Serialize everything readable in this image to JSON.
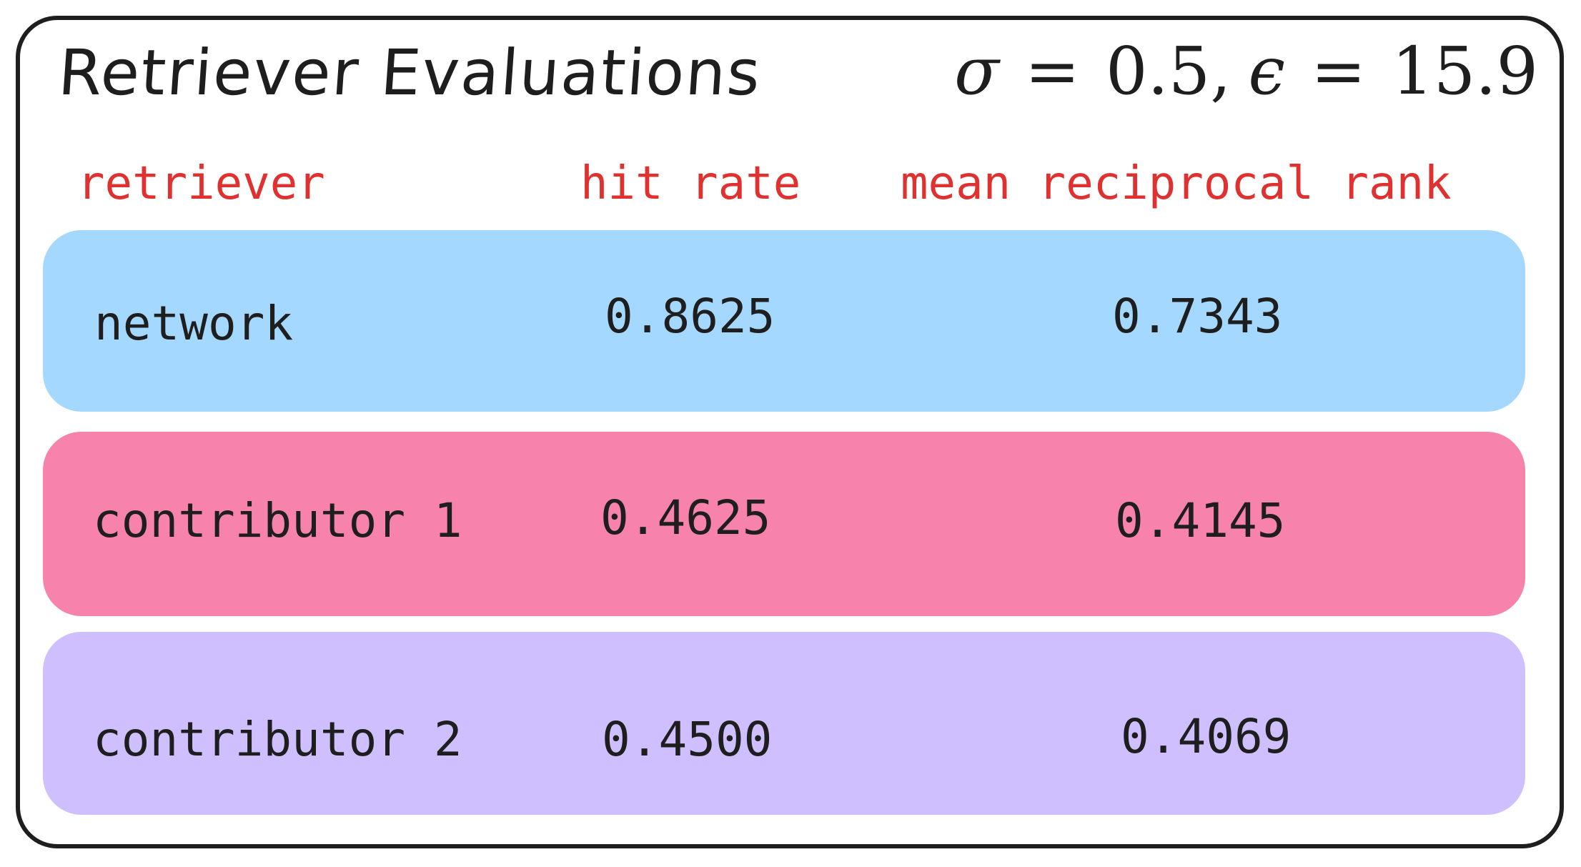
{
  "title": "Retriever Evaluations",
  "params": {
    "sigma_symbol": "σ",
    "equals": "=",
    "sigma_value": "0.5",
    "comma": ",",
    "epsilon_symbol": "ϵ",
    "epsilon_value": "15.9"
  },
  "table": {
    "headers": [
      "retriever",
      "hit rate",
      "mean reciprocal rank"
    ],
    "rows": [
      {
        "retriever": "network",
        "hit_rate": "0.8625",
        "mrr": "0.7343",
        "color": "#a5d8ff"
      },
      {
        "retriever": "contributor 1",
        "hit_rate": "0.4625",
        "mrr": "0.4145",
        "color": "#f783ac"
      },
      {
        "retriever": "contributor 2",
        "hit_rate": "0.4500",
        "mrr": "0.4069",
        "color": "#d0bfff"
      }
    ]
  },
  "colors": {
    "header_text": "#e03131",
    "body_text": "#1e1e1e",
    "border": "#1e1e1e"
  }
}
